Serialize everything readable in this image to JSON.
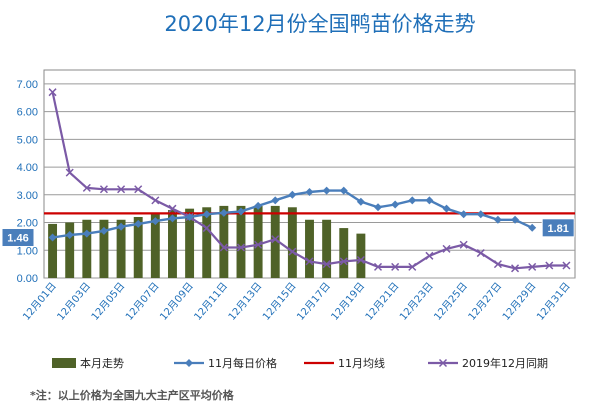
{
  "chart_data": {
    "type": "bar",
    "title": "2020年12月份全国鸭苗价格走势",
    "ylim": [
      0,
      7.5
    ],
    "y_ticks": [
      "0.00",
      "1.00",
      "2.00",
      "3.00",
      "4.00",
      "5.00",
      "6.00",
      "7.00"
    ],
    "x_tick_labels": [
      "12月01日",
      "12月03日",
      "12月05日",
      "12月07日",
      "12月09日",
      "12月11日",
      "12月13日",
      "12月15日",
      "12月17日",
      "12月19日",
      "12月21日",
      "12月23日",
      "12月25日",
      "12月27日",
      "12月29日",
      "12月31日"
    ],
    "days": 31,
    "grid": true,
    "legend_position": "bottom",
    "series": [
      {
        "name": "本月走势",
        "kind": "bar",
        "color": "#4f6228",
        "values": [
          1.95,
          2.0,
          2.1,
          2.1,
          2.1,
          2.2,
          2.3,
          2.45,
          2.5,
          2.55,
          2.6,
          2.6,
          2.6,
          2.6,
          2.55,
          2.1,
          2.1,
          1.8,
          1.6,
          null,
          null,
          null,
          null,
          null,
          null,
          null,
          null,
          null,
          null,
          null,
          null
        ]
      },
      {
        "name": "11月每日价格",
        "kind": "line-diamond",
        "color": "#4a7ebb",
        "values": [
          1.46,
          1.55,
          1.6,
          1.7,
          1.85,
          1.95,
          2.05,
          2.15,
          2.2,
          2.3,
          2.35,
          2.4,
          2.6,
          2.8,
          3.0,
          3.1,
          3.15,
          3.15,
          2.75,
          2.55,
          2.65,
          2.8,
          2.8,
          2.5,
          2.3,
          2.3,
          2.1,
          2.1,
          1.81,
          null,
          null
        ]
      },
      {
        "name": "11月均线",
        "kind": "hline",
        "color": "#cc0000",
        "value": 2.33
      },
      {
        "name": "2019年12月同期",
        "kind": "line-x",
        "color": "#7b5aa6",
        "values": [
          6.7,
          3.8,
          3.25,
          3.2,
          3.2,
          3.2,
          2.8,
          2.5,
          2.2,
          1.8,
          1.1,
          1.1,
          1.2,
          1.4,
          0.95,
          0.6,
          0.5,
          0.6,
          0.65,
          0.4,
          0.4,
          0.4,
          0.8,
          1.05,
          1.2,
          0.9,
          0.5,
          0.35,
          0.4,
          0.45,
          0.45
        ]
      }
    ],
    "callouts": [
      {
        "label": "1.46",
        "series": 1,
        "day": 1,
        "side": "left"
      },
      {
        "label": "1.81",
        "series": 1,
        "day": 29,
        "side": "right"
      }
    ],
    "note": "*注：以上价格为全国九大主产区平均价格"
  }
}
